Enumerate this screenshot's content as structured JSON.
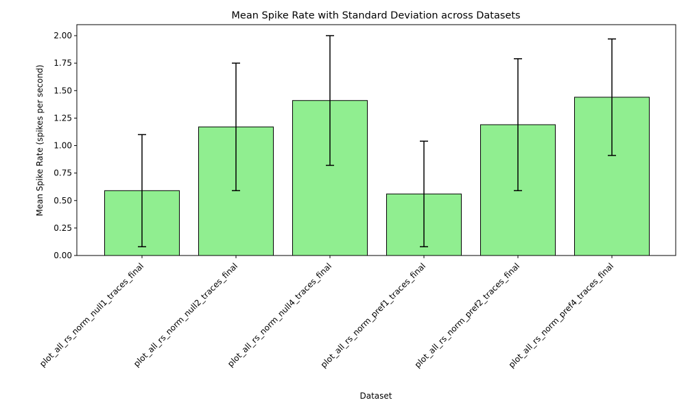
{
  "chart_data": {
    "type": "bar",
    "title": "Mean Spike Rate with Standard Deviation across Datasets",
    "xlabel": "Dataset",
    "ylabel": "Mean Spike Rate (spikes per second)",
    "categories": [
      "plot_all_rs_norm_null1_traces_final",
      "plot_all_rs_norm_null2_traces_final",
      "plot_all_rs_norm_null4_traces_final",
      "plot_all_rs_norm_pref1_traces_final",
      "plot_all_rs_norm_pref2_traces_final",
      "plot_all_rs_norm_pref4_traces_final"
    ],
    "values": [
      0.59,
      1.17,
      1.41,
      0.56,
      1.19,
      1.44
    ],
    "errors": [
      0.51,
      0.58,
      0.59,
      0.48,
      0.6,
      0.53
    ],
    "ylim": [
      0,
      2.1
    ],
    "yticks": [
      0.0,
      0.25,
      0.5,
      0.75,
      1.0,
      1.25,
      1.5,
      1.75,
      2.0
    ],
    "ytick_labels": [
      "0.00",
      "0.25",
      "0.50",
      "0.75",
      "1.00",
      "1.25",
      "1.50",
      "1.75",
      "2.00"
    ],
    "grid": false,
    "colors": {
      "bar_fill": "#90ee90",
      "bar_edge": "#000000",
      "error_bar": "#000000"
    }
  }
}
